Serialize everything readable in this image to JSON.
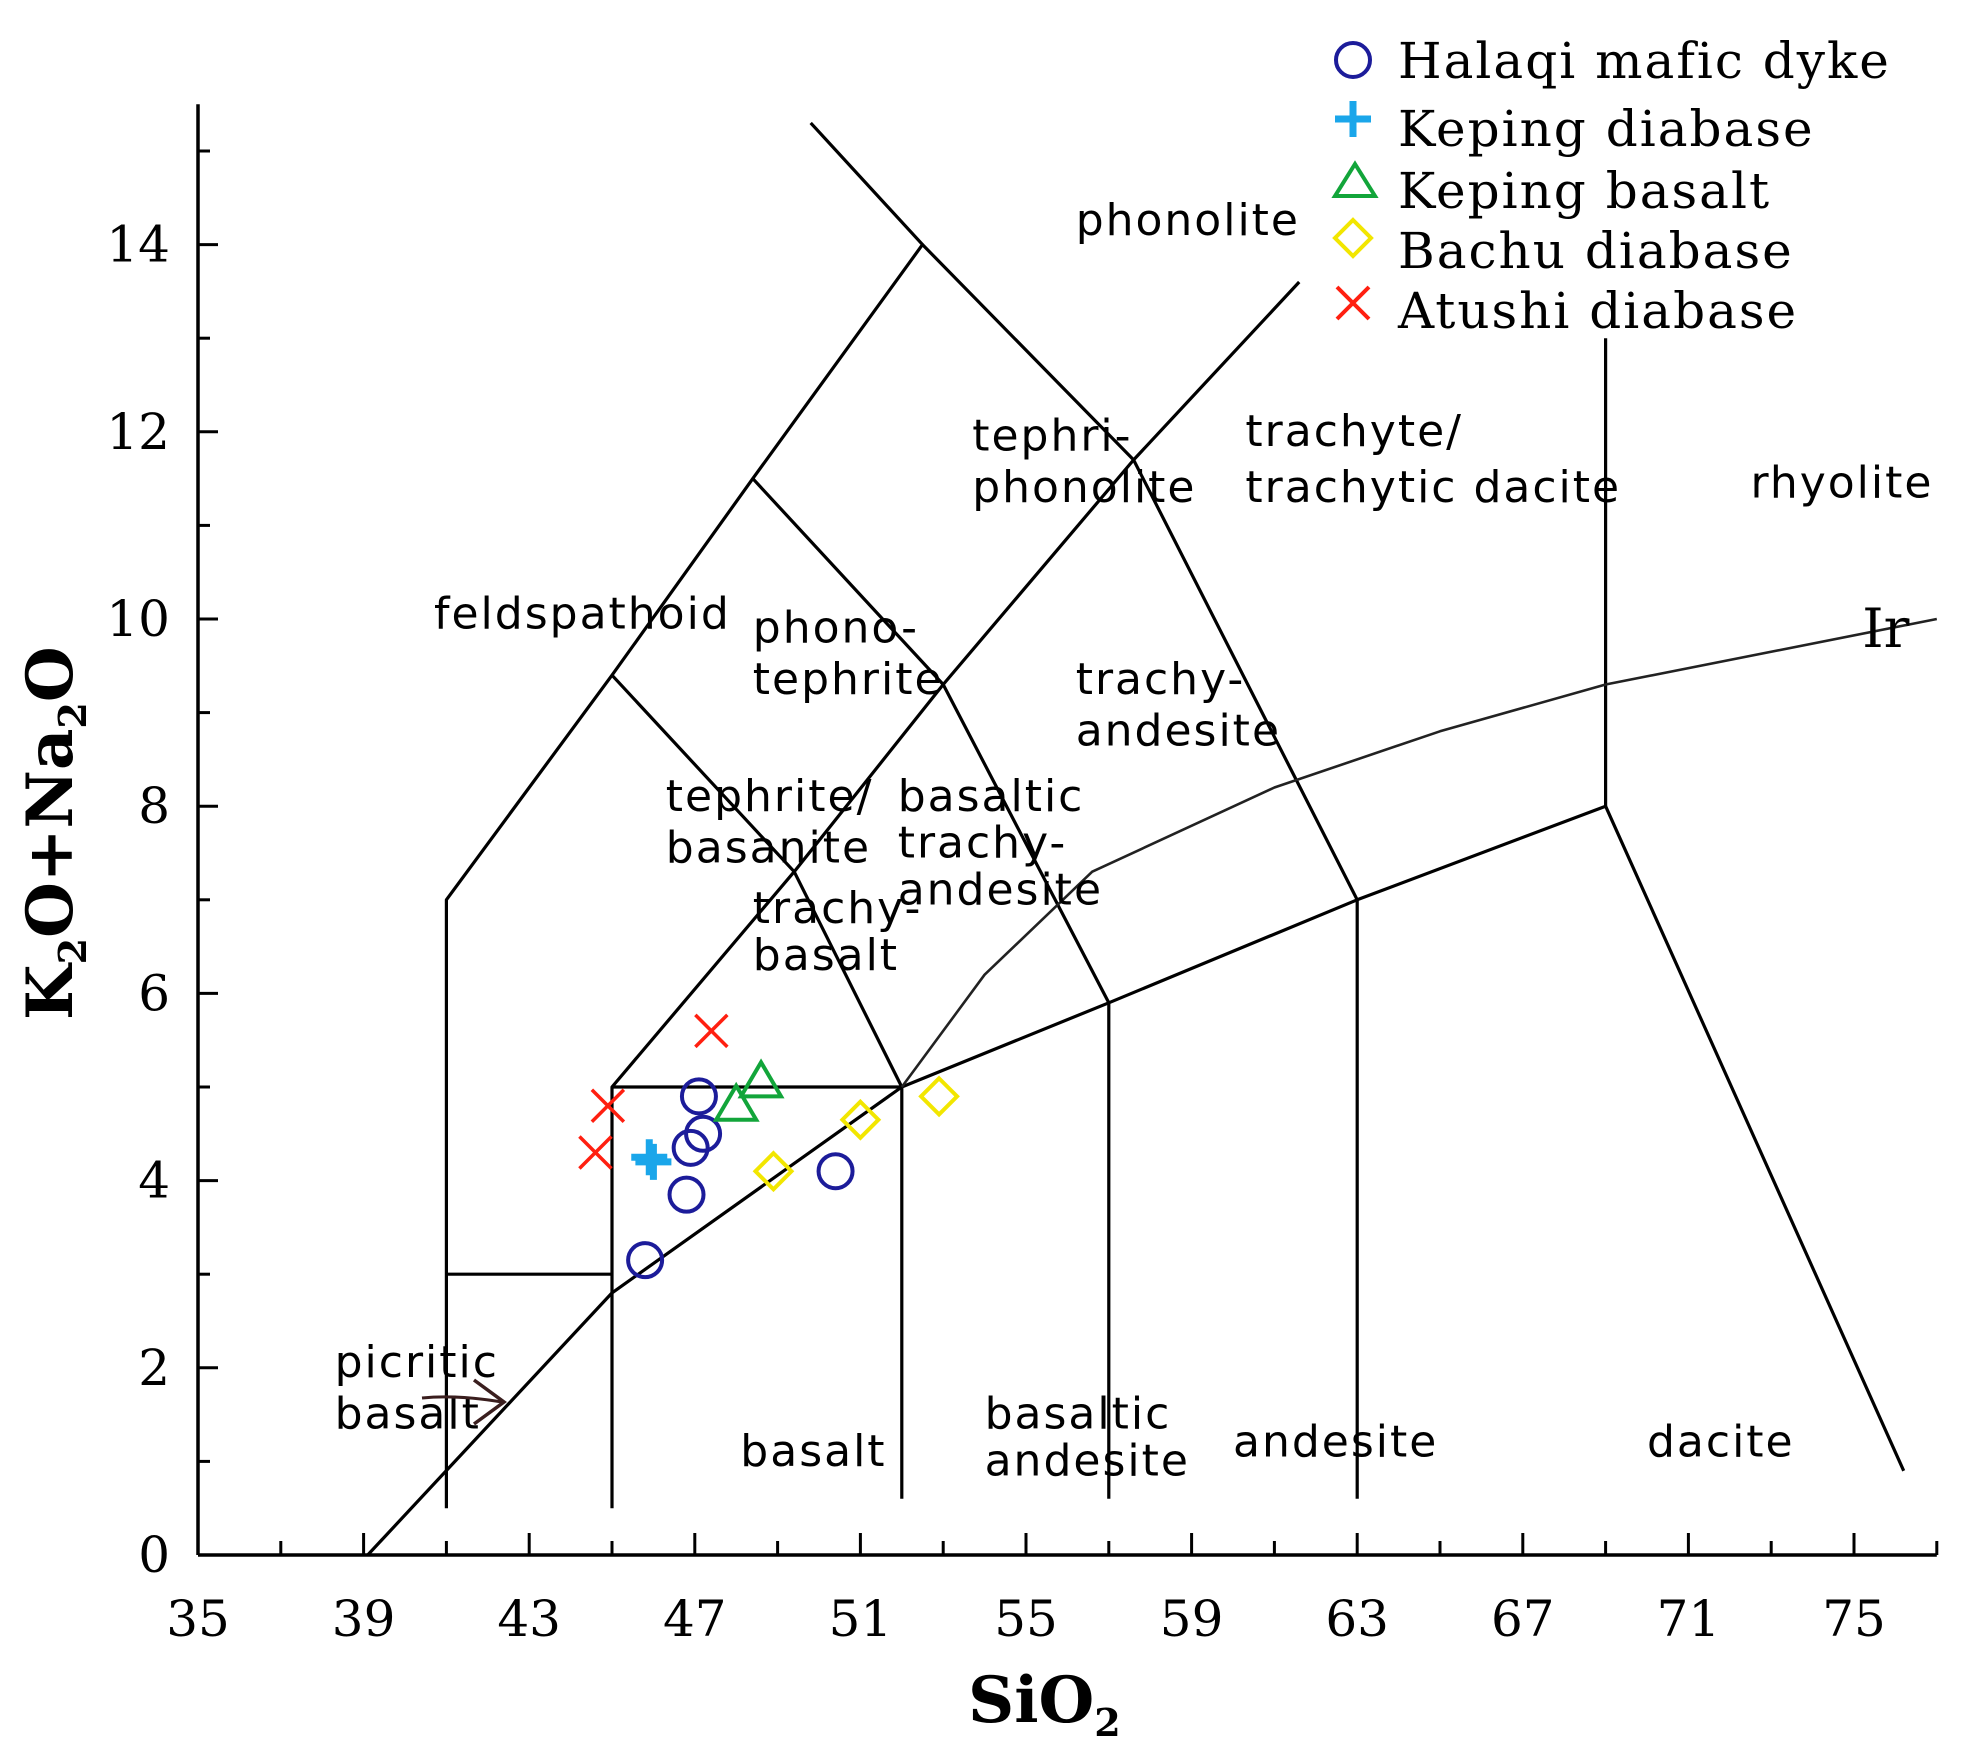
{
  "chart_data": {
    "type": "scatter",
    "title": "",
    "xlabel": "SiO",
    "xlabel_sub": "2",
    "ylabel_parts": {
      "k": "K",
      "sub1": "2",
      "mid": "O+Na",
      "sub2": "2",
      "end": "O"
    },
    "xlim": [
      35,
      77
    ],
    "ylim": [
      0,
      15.5
    ],
    "x_ticks": [
      "35",
      "39",
      "43",
      "47",
      "51",
      "55",
      "59",
      "63",
      "67",
      "71",
      "75"
    ],
    "y_ticks": [
      "0",
      "2",
      "4",
      "6",
      "8",
      "10",
      "12",
      "14"
    ],
    "series": [
      {
        "name": "Halaqi mafic dyke",
        "marker": "circle",
        "color": "#1c1c9a",
        "points": [
          [
            45.8,
            3.15
          ],
          [
            46.8,
            3.85
          ],
          [
            46.9,
            4.35
          ],
          [
            47.1,
            4.9
          ],
          [
            47.2,
            4.5
          ],
          [
            50.4,
            4.1
          ]
        ]
      },
      {
        "name": "Keping diabase",
        "marker": "plus",
        "color": "#1aa6ea",
        "points": [
          [
            45.9,
            4.25
          ],
          [
            46.0,
            4.2
          ]
        ]
      },
      {
        "name": "Keping basalt",
        "marker": "triangle",
        "color": "#12a53a",
        "points": [
          [
            48.0,
            4.8
          ],
          [
            48.6,
            5.05
          ]
        ]
      },
      {
        "name": "Bachu diabase",
        "marker": "diamond",
        "color": "#f2e600",
        "points": [
          [
            48.9,
            4.1
          ],
          [
            51.0,
            4.65
          ],
          [
            52.9,
            4.9
          ]
        ]
      },
      {
        "name": "Atushi diabase",
        "marker": "cross",
        "color": "#ff1f10",
        "points": [
          [
            44.6,
            4.3
          ],
          [
            44.9,
            4.8
          ],
          [
            47.4,
            5.6
          ]
        ]
      }
    ],
    "boundaries": [
      [
        [
          41,
          0.5
        ],
        [
          41,
          7.0
        ],
        [
          45,
          9.4
        ],
        [
          48.4,
          11.5
        ],
        [
          52.5,
          14.0
        ],
        [
          49.8,
          15.3
        ]
      ],
      [
        [
          41,
          3.0
        ],
        [
          45,
          3.0
        ]
      ],
      [
        [
          45,
          0.5
        ],
        [
          45,
          5.0
        ],
        [
          49.4,
          7.3
        ],
        [
          53,
          9.3
        ],
        [
          57.6,
          11.7
        ],
        [
          61.6,
          13.6
        ]
      ],
      [
        [
          45,
          5.0
        ],
        [
          52,
          5.0
        ],
        [
          49.4,
          7.3
        ],
        [
          45,
          9.4
        ]
      ],
      [
        [
          52,
          0.6
        ],
        [
          52,
          5.0
        ],
        [
          57,
          5.9
        ],
        [
          63,
          7.0
        ],
        [
          69,
          8.0
        ],
        [
          76.2,
          0.9
        ]
      ],
      [
        [
          57,
          0.6
        ],
        [
          57,
          5.9
        ],
        [
          53,
          9.3
        ],
        [
          48.4,
          11.5
        ]
      ],
      [
        [
          63,
          0.6
        ],
        [
          63,
          7.0
        ],
        [
          57.6,
          11.7
        ],
        [
          52.5,
          14.0
        ]
      ],
      [
        [
          69,
          8.0
        ],
        [
          69,
          13.0
        ]
      ],
      [
        [
          39.1,
          0
        ],
        [
          45,
          2.8
        ],
        [
          52,
          5.0
        ]
      ]
    ],
    "irvine_line": [
      [
        52,
        5.0
      ],
      [
        54,
        6.2
      ],
      [
        56.6,
        7.3
      ],
      [
        61,
        8.2
      ],
      [
        65,
        8.8
      ],
      [
        69,
        9.3
      ],
      [
        77,
        10.0
      ]
    ],
    "fields": [
      {
        "text": "phonolite",
        "x": 56.2,
        "y": 14.1
      },
      {
        "text": "tephri-",
        "x": 53.7,
        "y": 11.8
      },
      {
        "text": "phonolite",
        "x": 53.7,
        "y": 11.25
      },
      {
        "text": "trachyte/",
        "x": 60.3,
        "y": 11.85
      },
      {
        "text": "trachytic dacite",
        "x": 60.3,
        "y": 11.25
      },
      {
        "text": "rhyolite",
        "x": 72.5,
        "y": 11.3
      },
      {
        "text": "feldspathoid",
        "x": 40.7,
        "y": 9.9
      },
      {
        "text": "phono-",
        "x": 48.4,
        "y": 9.75
      },
      {
        "text": "tephrite",
        "x": 48.4,
        "y": 9.2
      },
      {
        "text": "trachy-",
        "x": 56.2,
        "y": 9.2
      },
      {
        "text": "andesite",
        "x": 56.2,
        "y": 8.65
      },
      {
        "text": "tephrite/",
        "x": 46.3,
        "y": 7.95
      },
      {
        "text": "basanite",
        "x": 46.3,
        "y": 7.4
      },
      {
        "text": "basaltic",
        "x": 51.9,
        "y": 7.95
      },
      {
        "text": "trachy-",
        "x": 51.9,
        "y": 7.45
      },
      {
        "text": "andesite",
        "x": 51.9,
        "y": 6.95
      },
      {
        "text": "trachy-",
        "x": 48.4,
        "y": 6.75
      },
      {
        "text": "basalt",
        "x": 48.4,
        "y": 6.25
      },
      {
        "text": "picritic",
        "x": 38.3,
        "y": 1.9
      },
      {
        "text": "basalt",
        "x": 38.3,
        "y": 1.35
      },
      {
        "text": "basalt",
        "x": 48.1,
        "y": 0.95
      },
      {
        "text": "basaltic",
        "x": 54.0,
        "y": 1.35
      },
      {
        "text": "andesite",
        "x": 54.0,
        "y": 0.85
      },
      {
        "text": "andesite",
        "x": 60.0,
        "y": 1.05
      },
      {
        "text": "dacite",
        "x": 70.0,
        "y": 1.05
      },
      {
        "text": "Ir",
        "x": 75.2,
        "y": 9.7
      }
    ]
  }
}
